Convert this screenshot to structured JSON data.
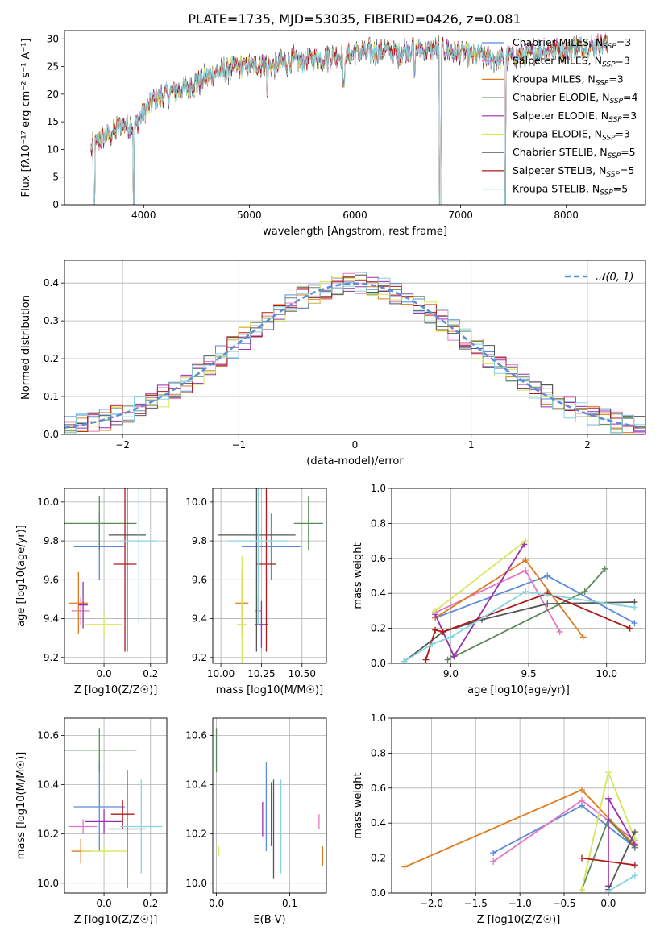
{
  "title": "PLATE=1735, MJD=53035, FIBERID=0426, z=0.081",
  "colors": {
    "Chabrier MILES": "#5b8bd9",
    "Salpeter MILES": "#e377c2",
    "Kroupa MILES": "#e07b1f",
    "Chabrier ELODIE": "#5a8a5a",
    "Salpeter ELODIE": "#9a2fae",
    "Kroupa ELODIE": "#d8e65a",
    "Chabrier STELIB": "#555555",
    "Salpeter STELIB": "#b01a1a",
    "Kroupa STELIB": "#86d4e0",
    "normal": "#5b8bd9"
  },
  "models": [
    "Chabrier MILES",
    "Salpeter MILES",
    "Kroupa MILES",
    "Chabrier ELODIE",
    "Salpeter ELODIE",
    "Kroupa ELODIE",
    "Chabrier STELIB",
    "Salpeter STELIB",
    "Kroupa STELIB"
  ],
  "chart_data": [
    {
      "id": "spectrum",
      "type": "line",
      "xlabel": "wavelength [Angstrom, rest frame]",
      "ylabel": "Flux [fλ10⁻¹⁷ erg cm⁻² s⁻¹ A⁻¹]",
      "xlim": [
        3250,
        8750
      ],
      "ylim": [
        0,
        31.5
      ],
      "xticks": [
        4000,
        5000,
        6000,
        7000,
        8000
      ],
      "yticks": [
        0,
        5,
        10,
        15,
        20,
        25,
        30
      ],
      "grid": false,
      "legend": "top-right",
      "legend_entries": [
        {
          "name": "Chabrier MILES",
          "nssp": "3"
        },
        {
          "name": "Salpeter MILES",
          "nssp": "3"
        },
        {
          "name": "Kroupa MILES",
          "nssp": "3"
        },
        {
          "name": "Chabrier ELODIE",
          "nssp": "4"
        },
        {
          "name": "Salpeter ELODIE",
          "nssp": "3"
        },
        {
          "name": "Kroupa ELODIE",
          "nssp": "3"
        },
        {
          "name": "Chabrier STELIB",
          "nssp": "5"
        },
        {
          "name": "Salpeter STELIB",
          "nssp": "5"
        },
        {
          "name": "Kroupa STELIB",
          "nssp": "5"
        }
      ],
      "continuum": [
        [
          3500,
          10
        ],
        [
          3600,
          12
        ],
        [
          3700,
          13
        ],
        [
          3800,
          14.5
        ],
        [
          3900,
          14
        ],
        [
          4000,
          16.5
        ],
        [
          4100,
          19
        ],
        [
          4200,
          20
        ],
        [
          4300,
          20.5
        ],
        [
          4400,
          21
        ],
        [
          4500,
          22
        ],
        [
          4600,
          23
        ],
        [
          4700,
          24
        ],
        [
          4800,
          24.5
        ],
        [
          4900,
          25
        ],
        [
          5000,
          25
        ],
        [
          5100,
          25.5
        ],
        [
          5200,
          25
        ],
        [
          5300,
          25.5
        ],
        [
          5400,
          26
        ],
        [
          5500,
          26
        ],
        [
          5600,
          26.5
        ],
        [
          5700,
          26.5
        ],
        [
          5800,
          27
        ],
        [
          5900,
          27
        ],
        [
          6000,
          27.5
        ],
        [
          6100,
          27.5
        ],
        [
          6200,
          27.5
        ],
        [
          6300,
          28
        ],
        [
          6400,
          27.5
        ],
        [
          6500,
          28
        ],
        [
          6600,
          28
        ],
        [
          6700,
          28
        ],
        [
          6800,
          28
        ],
        [
          6900,
          28
        ],
        [
          7000,
          27.5
        ],
        [
          7100,
          27
        ],
        [
          7200,
          27
        ],
        [
          7300,
          26.5
        ],
        [
          7400,
          26.5
        ],
        [
          7500,
          27
        ],
        [
          7600,
          27
        ],
        [
          7700,
          27.5
        ],
        [
          7800,
          28
        ],
        [
          7900,
          28
        ],
        [
          8000,
          28
        ],
        [
          8100,
          28.5
        ],
        [
          8200,
          28.5
        ],
        [
          8300,
          29
        ],
        [
          8400,
          29
        ]
      ],
      "dips": [
        [
          3530,
          0
        ],
        [
          3905,
          0
        ],
        [
          6805,
          0
        ],
        [
          7420,
          0
        ],
        [
          5170,
          20
        ],
        [
          5893,
          22
        ],
        [
          6563,
          24
        ]
      ]
    },
    {
      "id": "residuals",
      "type": "histogram",
      "xlabel": "(data-model)/error",
      "ylabel": "Normed distribution",
      "xlim": [
        -2.5,
        2.5
      ],
      "ylim": [
        0,
        0.46
      ],
      "xticks": [
        -2,
        -1,
        0,
        1,
        2
      ],
      "yticks": [
        0.0,
        0.1,
        0.2,
        0.3,
        0.4
      ],
      "grid": true,
      "legend": "top-right",
      "legend_label": "𝒩(0, 1)",
      "normal": {
        "mean": 0,
        "sigma": 1
      }
    },
    {
      "id": "age-vs-Z",
      "type": "errorbar",
      "xlabel": "Z [log10(Z/Z☉)]",
      "ylabel": "age  [log10(age/yr)]",
      "xlim": [
        -0.17,
        0.27
      ],
      "ylim": [
        9.17,
        10.07
      ],
      "xticks": [
        0.0,
        0.2
      ],
      "yticks": [
        9.2,
        9.4,
        9.6,
        9.8,
        10.0
      ],
      "grid": true,
      "points": [
        {
          "model": "Chabrier MILES",
          "x": -0.02,
          "xerr": 0.11,
          "y": 9.77,
          "yerr": 0.17
        },
        {
          "model": "Salpeter MILES",
          "x": -0.1,
          "xerr": 0.04,
          "y": 9.44,
          "yerr": 0.07
        },
        {
          "model": "Kroupa MILES",
          "x": -0.11,
          "xerr": 0.04,
          "y": 9.48,
          "yerr": 0.16
        },
        {
          "model": "Chabrier ELODIE",
          "x": -0.02,
          "xerr": 0.16,
          "y": 9.89,
          "yerr": 0.14
        },
        {
          "model": "Salpeter ELODIE",
          "x": -0.09,
          "xerr": 0.02,
          "y": 9.47,
          "yerr": 0.12
        },
        {
          "model": "Kroupa ELODIE",
          "x": 0.0,
          "xerr": 0.08,
          "y": 9.37,
          "yerr": 0.06
        },
        {
          "model": "Chabrier STELIB",
          "x": 0.1,
          "xerr": 0.08,
          "y": 9.83,
          "yerr": 0.6
        },
        {
          "model": "Salpeter STELIB",
          "x": 0.09,
          "xerr": 0.05,
          "y": 9.68,
          "yerr": 0.45
        },
        {
          "model": "Kroupa STELIB",
          "x": 0.15,
          "xerr": 0.08,
          "y": 9.8,
          "yerr": 0.43
        }
      ]
    },
    {
      "id": "age-vs-mass",
      "type": "errorbar",
      "xlabel": "mass [log10(M/M☉)]",
      "ylabel": "",
      "xlim": [
        9.95,
        10.65
      ],
      "ylim": [
        9.17,
        10.07
      ],
      "xticks": [
        10.0,
        10.25,
        10.5
      ],
      "yticks": [
        9.2,
        9.4,
        9.6,
        9.8,
        10.0
      ],
      "grid": true,
      "points": [
        {
          "model": "Chabrier MILES",
          "x": 10.31,
          "xerr": 0.18,
          "y": 9.77,
          "yerr": 0.17
        },
        {
          "model": "Salpeter MILES",
          "x": 10.23,
          "xerr": 0.02,
          "y": 9.44,
          "yerr": 0.07
        },
        {
          "model": "Kroupa MILES",
          "x": 10.13,
          "xerr": 0.04,
          "y": 9.48,
          "yerr": 0.16
        },
        {
          "model": "Chabrier ELODIE",
          "x": 10.54,
          "xerr": 0.09,
          "y": 9.89,
          "yerr": 0.14
        },
        {
          "model": "Salpeter ELODIE",
          "x": 10.25,
          "xerr": 0.04,
          "y": 9.37,
          "yerr": 0.12
        },
        {
          "model": "Kroupa ELODIE",
          "x": 10.13,
          "xerr": 0.03,
          "y": 9.37,
          "yerr": 0.35
        },
        {
          "model": "Chabrier STELIB",
          "x": 10.22,
          "xerr": 0.24,
          "y": 9.83,
          "yerr": 0.6
        },
        {
          "model": "Salpeter STELIB",
          "x": 10.28,
          "xerr": 0.06,
          "y": 9.68,
          "yerr": 0.45
        },
        {
          "model": "Kroupa STELIB",
          "x": 10.23,
          "xerr": 0.19,
          "y": 9.8,
          "yerr": 0.43
        }
      ]
    },
    {
      "id": "massweight-vs-age",
      "type": "line",
      "xlabel": "age  [log10(age/yr)]",
      "ylabel": "mass weight",
      "xlim": [
        8.62,
        10.25
      ],
      "ylim": [
        0,
        1.0
      ],
      "xticks": [
        9.0,
        9.5,
        10.0
      ],
      "yticks": [
        0.0,
        0.2,
        0.4,
        0.6,
        0.8,
        1.0
      ],
      "grid": true,
      "series": [
        {
          "model": "Chabrier MILES",
          "x": [
            8.9,
            9.62,
            10.18
          ],
          "y": [
            0.26,
            0.5,
            0.23
          ]
        },
        {
          "model": "Salpeter MILES",
          "x": [
            8.9,
            9.48,
            9.7
          ],
          "y": [
            0.29,
            0.53,
            0.18
          ]
        },
        {
          "model": "Kroupa MILES",
          "x": [
            8.9,
            9.48,
            9.85
          ],
          "y": [
            0.26,
            0.59,
            0.15
          ]
        },
        {
          "model": "Chabrier ELODIE",
          "x": [
            8.98,
            9.86,
            9.99
          ],
          "y": [
            0.02,
            0.41,
            0.54
          ]
        },
        {
          "model": "Salpeter ELODIE",
          "x": [
            8.9,
            9.02,
            9.47
          ],
          "y": [
            0.28,
            0.04,
            0.68
          ]
        },
        {
          "model": "Kroupa ELODIE",
          "x": [
            8.9,
            9.48
          ],
          "y": [
            0.3,
            0.7
          ]
        },
        {
          "model": "Chabrier STELIB",
          "x": [
            8.7,
            8.95,
            9.2,
            9.62,
            10.18
          ],
          "y": [
            0.01,
            0.18,
            0.25,
            0.34,
            0.35
          ]
        },
        {
          "model": "Salpeter STELIB",
          "x": [
            8.84,
            8.9,
            8.95,
            9.62,
            10.15
          ],
          "y": [
            0.02,
            0.19,
            0.18,
            0.4,
            0.2
          ]
        },
        {
          "model": "Kroupa STELIB",
          "x": [
            8.7,
            8.88,
            9.0,
            9.48,
            10.18
          ],
          "y": [
            0.01,
            0.11,
            0.15,
            0.41,
            0.32
          ]
        }
      ]
    },
    {
      "id": "mass-vs-Z",
      "type": "errorbar",
      "xlabel": "Z [log10(Z/Z☉)]",
      "ylabel": "mass [log10(M/M☉)]",
      "xlim": [
        -0.17,
        0.27
      ],
      "ylim": [
        9.96,
        10.67
      ],
      "xticks": [
        0.0,
        0.2
      ],
      "yticks": [
        10.0,
        10.2,
        10.4,
        10.6
      ],
      "grid": true,
      "points": [
        {
          "model": "Chabrier MILES",
          "x": -0.02,
          "xerr": 0.11,
          "y": 10.31,
          "yerr": 0.18
        },
        {
          "model": "Salpeter MILES",
          "x": -0.09,
          "xerr": 0.06,
          "y": 10.23,
          "yerr": 0.03
        },
        {
          "model": "Kroupa MILES",
          "x": -0.1,
          "xerr": 0.04,
          "y": 10.13,
          "yerr": 0.05
        },
        {
          "model": "Chabrier ELODIE",
          "x": -0.02,
          "xerr": 0.16,
          "y": 10.54,
          "yerr": 0.09
        },
        {
          "model": "Salpeter ELODIE",
          "x": 0.0,
          "xerr": 0.08,
          "y": 10.25,
          "yerr": 0.05
        },
        {
          "model": "Kroupa ELODIE",
          "x": 0.0,
          "xerr": 0.1,
          "y": 10.13,
          "yerr": 0.02
        },
        {
          "model": "Chabrier STELIB",
          "x": 0.1,
          "xerr": 0.08,
          "y": 10.22,
          "yerr": 0.24
        },
        {
          "model": "Salpeter STELIB",
          "x": 0.08,
          "xerr": 0.05,
          "y": 10.28,
          "yerr": 0.06
        },
        {
          "model": "Kroupa STELIB",
          "x": 0.16,
          "xerr": 0.09,
          "y": 10.23,
          "yerr": 0.19
        }
      ]
    },
    {
      "id": "mass-vs-EBV",
      "type": "errorbar",
      "xlabel": "E(B-V)",
      "ylabel": "",
      "xlim": [
        -0.005,
        0.15
      ],
      "ylim": [
        9.96,
        10.67
      ],
      "xticks": [
        0.0,
        0.1
      ],
      "yticks": [
        10.0,
        10.2,
        10.4,
        10.6
      ],
      "grid": true,
      "points": [
        {
          "model": "Chabrier MILES",
          "x": 0.068,
          "xerr": 0,
          "y": 10.31,
          "yerr": 0.18
        },
        {
          "model": "Salpeter MILES",
          "x": 0.14,
          "xerr": 0,
          "y": 10.25,
          "yerr": 0.03
        },
        {
          "model": "Kroupa MILES",
          "x": 0.145,
          "xerr": 0,
          "y": 10.11,
          "yerr": 0.04
        },
        {
          "model": "Chabrier ELODIE",
          "x": 0.0,
          "xerr": 0,
          "y": 10.54,
          "yerr": 0.09
        },
        {
          "model": "Salpeter ELODIE",
          "x": 0.063,
          "xerr": 0,
          "y": 10.26,
          "yerr": 0.07
        },
        {
          "model": "Kroupa ELODIE",
          "x": 0.003,
          "xerr": 0,
          "y": 10.13,
          "yerr": 0.02
        },
        {
          "model": "Chabrier STELIB",
          "x": 0.078,
          "xerr": 0,
          "y": 10.22,
          "yerr": 0.2
        },
        {
          "model": "Salpeter STELIB",
          "x": 0.075,
          "xerr": 0,
          "y": 10.28,
          "yerr": 0.13
        },
        {
          "model": "Kroupa STELIB",
          "x": 0.088,
          "xerr": 0,
          "y": 10.23,
          "yerr": 0.19
        }
      ]
    },
    {
      "id": "massweight-vs-Z",
      "type": "line",
      "xlabel": "Z [log10(Z/Z☉)]",
      "ylabel": "mass weight",
      "xlim": [
        -2.45,
        0.42
      ],
      "ylim": [
        0,
        1.0
      ],
      "xticks": [
        -2.0,
        -1.5,
        -1.0,
        -0.5,
        0.0
      ],
      "yticks": [
        0.0,
        0.2,
        0.4,
        0.6,
        0.8,
        1.0
      ],
      "grid": true,
      "series": [
        {
          "model": "Chabrier MILES",
          "x": [
            -1.3,
            -0.3,
            0.3
          ],
          "y": [
            0.23,
            0.5,
            0.26
          ]
        },
        {
          "model": "Salpeter MILES",
          "x": [
            -1.3,
            -0.3,
            0.3
          ],
          "y": [
            0.18,
            0.53,
            0.3
          ]
        },
        {
          "model": "Kroupa MILES",
          "x": [
            -2.3,
            -0.3,
            0.3
          ],
          "y": [
            0.15,
            0.59,
            0.27
          ]
        },
        {
          "model": "Chabrier ELODIE",
          "x": [
            -0.3,
            0.0,
            0.3
          ],
          "y": [
            0.02,
            0.42,
            0.26
          ]
        },
        {
          "model": "Salpeter ELODIE",
          "x": [
            0.0,
            0.0,
            0.3
          ],
          "y": [
            0.04,
            0.54,
            0.28
          ]
        },
        {
          "model": "Kroupa ELODIE",
          "x": [
            -0.3,
            0.0,
            0.3
          ],
          "y": [
            0.02,
            0.69,
            0.31
          ]
        },
        {
          "model": "Chabrier STELIB",
          "x": [
            0.0,
            0.3
          ],
          "y": [
            0.02,
            0.35
          ]
        },
        {
          "model": "Salpeter STELIB",
          "x": [
            -0.3,
            0.3
          ],
          "y": [
            0.2,
            0.16
          ]
        },
        {
          "model": "Kroupa STELIB",
          "x": [
            0.0,
            0.3
          ],
          "y": [
            0.01,
            0.1
          ]
        }
      ]
    }
  ]
}
